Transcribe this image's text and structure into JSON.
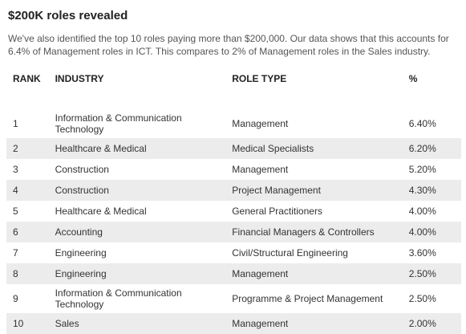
{
  "title": "$200K roles revealed",
  "intro": "We've also identified the top 10 roles paying more than $200,000. Our data shows that this accounts for 6.4% of Management roles in ICT. This compares to 2% of Management roles in the Sales industry.",
  "table": {
    "headers": {
      "rank": "RANK",
      "industry": "INDUSTRY",
      "role_type": "ROLE TYPE",
      "percent": "%"
    },
    "rows": [
      {
        "rank": "1",
        "industry": "Information & Communication Technology",
        "role_type": "Management",
        "percent": "6.40%"
      },
      {
        "rank": "2",
        "industry": "Healthcare & Medical",
        "role_type": "Medical Specialists",
        "percent": "6.20%"
      },
      {
        "rank": "3",
        "industry": "Construction",
        "role_type": "Management",
        "percent": "5.20%"
      },
      {
        "rank": "4",
        "industry": "Construction",
        "role_type": "Project Management",
        "percent": "4.30%"
      },
      {
        "rank": "5",
        "industry": "Healthcare & Medical",
        "role_type": "General Practitioners",
        "percent": "4.00%"
      },
      {
        "rank": "6",
        "industry": "Accounting",
        "role_type": "Financial Managers & Controllers",
        "percent": "4.00%"
      },
      {
        "rank": "7",
        "industry": "Engineering",
        "role_type": "Civil/Structural Engineering",
        "percent": "3.60%"
      },
      {
        "rank": "8",
        "industry": "Engineering",
        "role_type": "Management",
        "percent": "2.50%"
      },
      {
        "rank": "9",
        "industry": "Information & Communication Technology",
        "role_type": "Programme & Project Management",
        "percent": "2.50%"
      },
      {
        "rank": "10",
        "industry": "Sales",
        "role_type": "Management",
        "percent": "2.00%"
      }
    ]
  }
}
